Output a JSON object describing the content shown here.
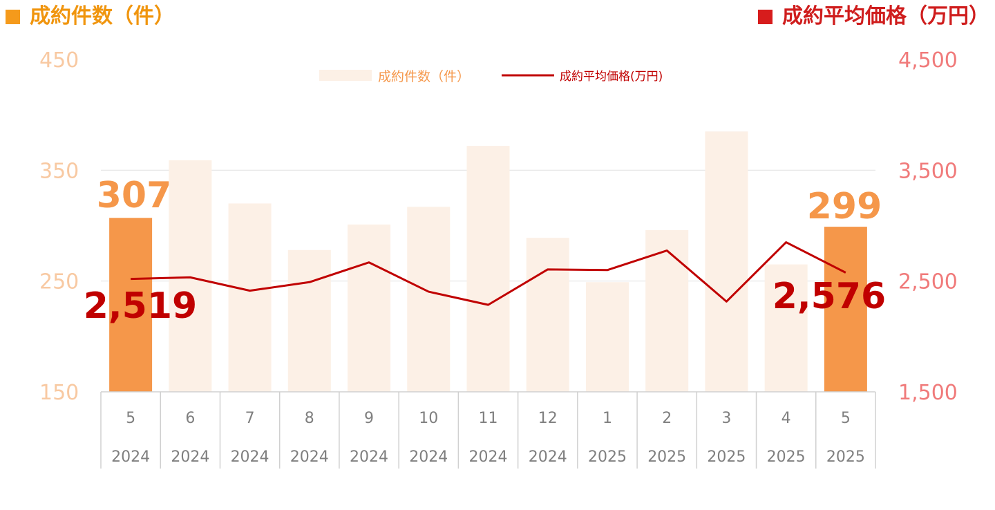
{
  "headers": {
    "left": "成約件数（件）",
    "right": "成約平均価格（万円）"
  },
  "colors": {
    "bar": "#fcf0e6",
    "bar_highlight": "#f5974a",
    "line": "#c00000",
    "left_axis_text": "#f8c9a2",
    "right_axis_text": "#f07a7a",
    "grid": "#e4e4e4",
    "category_text": "#7f7f7f"
  },
  "chart_data": {
    "type": "bar",
    "categories": [
      "5",
      "6",
      "7",
      "8",
      "9",
      "10",
      "11",
      "12",
      "1",
      "2",
      "3",
      "4",
      "5"
    ],
    "years": [
      "2024",
      "2024",
      "2024",
      "2024",
      "2024",
      "2024",
      "2024",
      "2024",
      "2025",
      "2025",
      "2025",
      "2025",
      "2025"
    ],
    "series": [
      {
        "name": "成約件数（件）",
        "type": "bar",
        "axis": "left",
        "values": [
          307,
          359,
          320,
          278,
          301,
          317,
          372,
          289,
          249,
          296,
          385,
          265,
          299
        ]
      },
      {
        "name": "成約平均価格(万円)",
        "type": "line",
        "axis": "right",
        "values": [
          2519,
          2533,
          2413,
          2490,
          2668,
          2404,
          2285,
          2605,
          2599,
          2775,
          2315,
          2850,
          2576
        ]
      }
    ],
    "left_axis": {
      "min": 150,
      "max": 450,
      "ticks": [
        150,
        250,
        350,
        450
      ]
    },
    "right_axis": {
      "min": 1500,
      "max": 4500,
      "ticks": [
        "1,500",
        "2,500",
        "3,500",
        "4,500"
      ]
    },
    "highlight_indices": [
      0,
      12
    ],
    "annotations": {
      "first_count": "307",
      "first_price": "2,519",
      "last_count": "299",
      "last_price": "2,576"
    },
    "legend": {
      "position": "top-center"
    },
    "grid": true
  }
}
